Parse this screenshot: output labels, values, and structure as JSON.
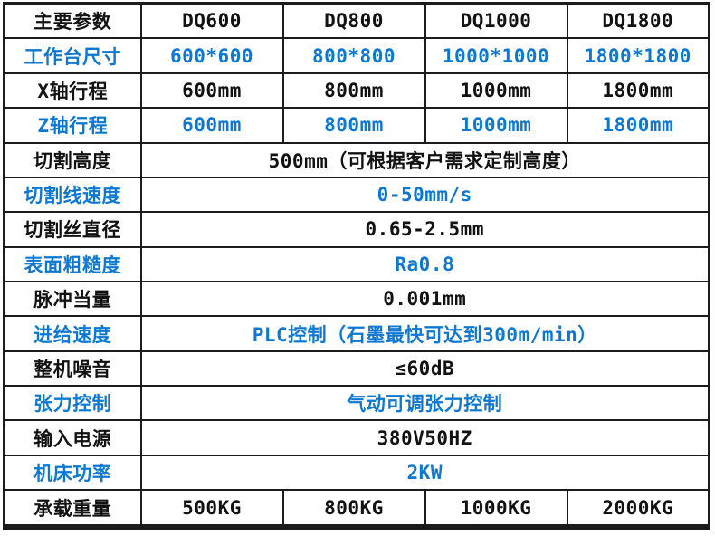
{
  "colors": {
    "accent_blue": "#0d78d2",
    "text_black": "#121212",
    "grid_border": "#1c1c1c",
    "background": "#ffffff"
  },
  "table": {
    "rows": [
      {
        "label": "主要参数",
        "values": [
          "DQ600",
          "DQ800",
          "DQ1000",
          "DQ1800"
        ],
        "span": false,
        "color": "black",
        "header": true
      },
      {
        "label": "工作台尺寸",
        "values": [
          "600*600",
          "800*800",
          "1000*1000",
          "1800*1800"
        ],
        "span": false,
        "color": "blue"
      },
      {
        "label": "X轴行程",
        "values": [
          "600mm",
          "800mm",
          "1000mm",
          "1800mm"
        ],
        "span": false,
        "color": "black"
      },
      {
        "label": "Z轴行程",
        "values": [
          "600mm",
          "800mm",
          "1000mm",
          "1800mm"
        ],
        "span": false,
        "color": "blue"
      },
      {
        "label": "切割高度",
        "values": [
          "500mm（可根据客户需求定制高度）"
        ],
        "span": true,
        "color": "black"
      },
      {
        "label": "切割线速度",
        "values": [
          "0-50mm/s"
        ],
        "span": true,
        "color": "blue"
      },
      {
        "label": "切割丝直径",
        "values": [
          "0.65-2.5mm"
        ],
        "span": true,
        "color": "black"
      },
      {
        "label": "表面粗糙度",
        "values": [
          "Ra0.8"
        ],
        "span": true,
        "color": "blue"
      },
      {
        "label": "脉冲当量",
        "values": [
          "0.001mm"
        ],
        "span": true,
        "color": "black"
      },
      {
        "label": "进给速度",
        "values": [
          "PLC控制（石墨最快可达到300m/min）"
        ],
        "span": true,
        "color": "blue"
      },
      {
        "label": "整机噪音",
        "values": [
          "≤60dB"
        ],
        "span": true,
        "color": "black"
      },
      {
        "label": "张力控制",
        "values": [
          "气动可调张力控制"
        ],
        "span": true,
        "color": "blue"
      },
      {
        "label": "输入电源",
        "values": [
          "380V50HZ"
        ],
        "span": true,
        "color": "black"
      },
      {
        "label": "机床功率",
        "values": [
          "2KW"
        ],
        "span": true,
        "color": "blue"
      },
      {
        "label": "承载重量",
        "values": [
          "500KG",
          "800KG",
          "1000KG",
          "2000KG"
        ],
        "span": false,
        "color": "black"
      }
    ]
  }
}
